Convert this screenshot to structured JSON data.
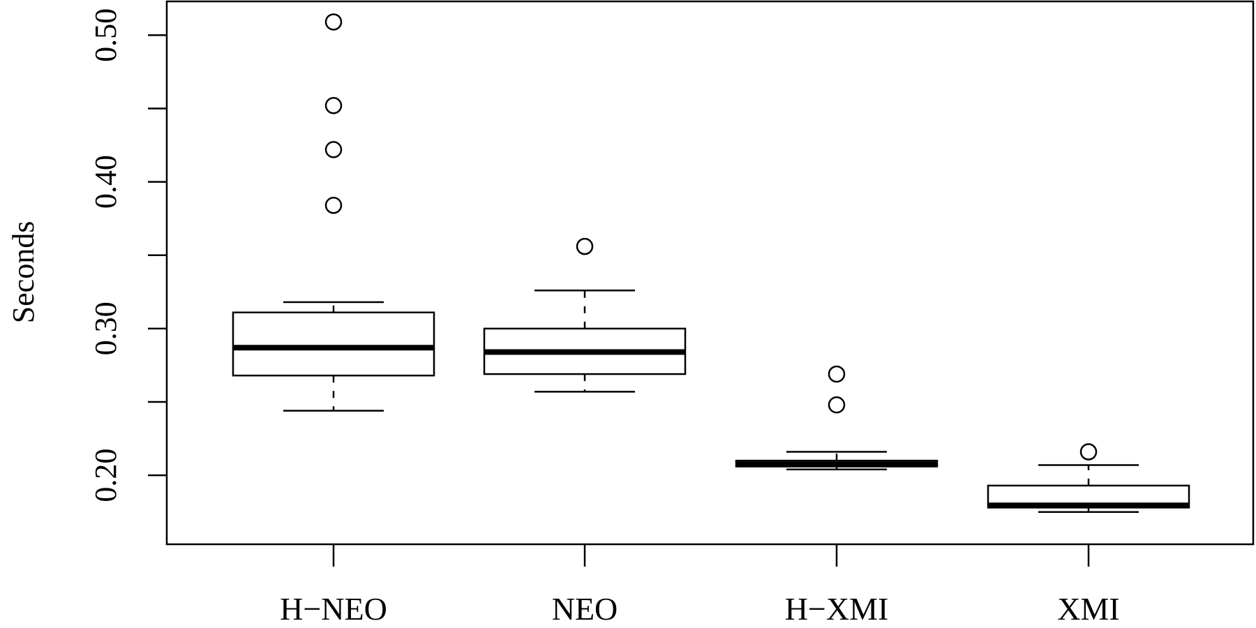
{
  "chart_data": {
    "type": "boxplot",
    "title": "",
    "xlabel": "",
    "ylabel": "Seconds",
    "ylim": [
      0.153,
      0.523
    ],
    "yticks": [
      0.2,
      0.25,
      0.3,
      0.35,
      0.4,
      0.45,
      0.5
    ],
    "ytick_labels": [
      "0.20",
      "",
      "0.30",
      "",
      "0.40",
      "",
      "0.50"
    ],
    "grid": false,
    "categories": [
      "H−NEO",
      "NEO",
      "H−XMI",
      "XMI"
    ],
    "boxes": [
      {
        "label": "H−NEO",
        "whisker_low": 0.244,
        "q1": 0.268,
        "median": 0.287,
        "q3": 0.311,
        "whisker_high": 0.318,
        "outliers": [
          0.509,
          0.452,
          0.422,
          0.384
        ]
      },
      {
        "label": "NEO",
        "whisker_low": 0.257,
        "q1": 0.269,
        "median": 0.284,
        "q3": 0.3,
        "whisker_high": 0.326,
        "outliers": [
          0.356
        ]
      },
      {
        "label": "H−XMI",
        "whisker_low": 0.204,
        "q1": 0.206,
        "median": 0.2075,
        "q3": 0.21,
        "whisker_high": 0.216,
        "outliers": [
          0.269,
          0.248
        ]
      },
      {
        "label": "XMI",
        "whisker_low": 0.175,
        "q1": 0.178,
        "median": 0.1795,
        "q3": 0.193,
        "whisker_high": 0.207,
        "outliers": [
          0.216
        ]
      }
    ]
  }
}
